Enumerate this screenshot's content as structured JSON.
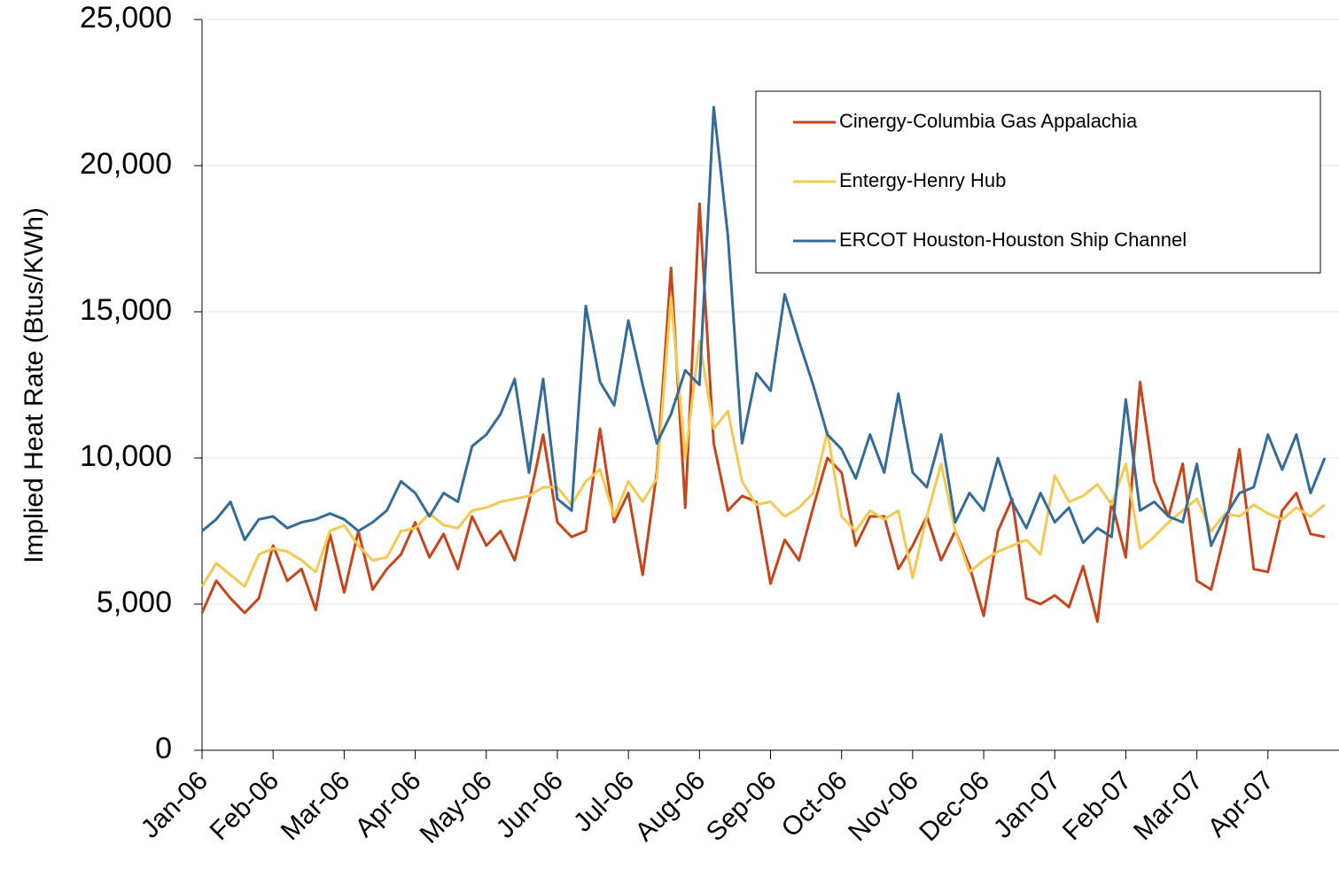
{
  "chart_data": {
    "type": "line",
    "y_label": "Implied Heat Rate (Btus/KWh)",
    "categories": [
      "Jan-06",
      null,
      null,
      null,
      null,
      "Feb-06",
      null,
      null,
      null,
      null,
      "Mar-06",
      null,
      null,
      null,
      null,
      "Apr-06",
      null,
      null,
      null,
      null,
      "May-06",
      null,
      null,
      null,
      null,
      "Jun-06",
      null,
      null,
      null,
      null,
      "Jul-06",
      null,
      null,
      null,
      null,
      "Aug-06",
      null,
      null,
      null,
      null,
      "Sep-06",
      null,
      null,
      null,
      null,
      "Oct-06",
      null,
      null,
      null,
      null,
      "Nov-06",
      null,
      null,
      null,
      null,
      "Dec-06",
      null,
      null,
      null,
      null,
      "Jan-07",
      null,
      null,
      null,
      null,
      "Feb-07",
      null,
      null,
      null,
      null,
      "Mar-07",
      null,
      null,
      null,
      null,
      "Apr-07",
      null,
      null,
      null,
      null
    ],
    "series": [
      {
        "name": "Cinergy-Columbia Gas Appalachia",
        "color": "#c8441a",
        "values": [
          4700,
          5800,
          5200,
          4700,
          5200,
          7000,
          5800,
          6200,
          4800,
          7400,
          5400,
          7500,
          5500,
          6200,
          6700,
          7800,
          6600,
          7400,
          6200,
          8000,
          7000,
          7500,
          6500,
          8500,
          10800,
          7800,
          7300,
          7500,
          11000,
          7800,
          8800,
          6000,
          9500,
          16500,
          8300,
          18700,
          10500,
          8200,
          8700,
          8500,
          5700,
          7200,
          6500,
          8300,
          10000,
          9500,
          7000,
          8000,
          8000,
          6200,
          7000,
          8000,
          6500,
          7500,
          6300,
          4600,
          7500,
          8600,
          5200,
          5000,
          5300,
          4900,
          6300,
          4400,
          8500,
          6600,
          12600,
          9200,
          8000,
          9800,
          5800,
          5500,
          7500,
          10300,
          6200,
          6100,
          8200,
          8800,
          7400,
          7300
        ]
      },
      {
        "name": "Entergy-Henry Hub",
        "color": "#f5c850",
        "values": [
          5600,
          6400,
          6000,
          5600,
          6700,
          6900,
          6800,
          6500,
          6100,
          7500,
          7700,
          7000,
          6500,
          6600,
          7500,
          7600,
          8100,
          7700,
          7600,
          8200,
          8300,
          8500,
          8600,
          8700,
          9000,
          9000,
          8400,
          9200,
          9600,
          8000,
          9200,
          8500,
          9300,
          15500,
          10000,
          14000,
          11000,
          11600,
          9200,
          8400,
          8500,
          8000,
          8300,
          8800,
          10900,
          8000,
          7500,
          8200,
          7900,
          8200,
          5900,
          8000,
          9800,
          7500,
          6100,
          6500,
          6800,
          7000,
          7200,
          6700,
          9400,
          8500,
          8700,
          9100,
          8400,
          9800,
          6900,
          7300,
          7800,
          8200,
          8600,
          7500,
          8100,
          8000,
          8400,
          8100,
          7900,
          8300,
          8000,
          8400
        ]
      },
      {
        "name": "ERCOT Houston-Houston Ship Channel",
        "color": "#336b9b",
        "values": [
          7500,
          7900,
          8500,
          7200,
          7900,
          8000,
          7600,
          7800,
          7900,
          8100,
          7900,
          7500,
          7800,
          8200,
          9200,
          8800,
          8000,
          8800,
          8500,
          10400,
          10800,
          11500,
          12700,
          9500,
          12700,
          8600,
          8200,
          15200,
          12600,
          11800,
          14700,
          12500,
          10500,
          11500,
          13000,
          12500,
          22000,
          17600,
          10500,
          12900,
          12300,
          15600,
          14000,
          12500,
          10800,
          10300,
          9300,
          10800,
          9500,
          12200,
          9500,
          9000,
          10800,
          7800,
          8800,
          8200,
          10000,
          8500,
          7600,
          8800,
          7800,
          8300,
          7100,
          7600,
          7300,
          12000,
          8200,
          8500,
          8000,
          7800,
          9800,
          7000,
          8000,
          8800,
          9000,
          10800,
          9600,
          10800,
          8800,
          10000
        ]
      }
    ],
    "ylim": [
      0,
      25000
    ],
    "yticks": [
      0,
      {
        "value": 5000,
        "label": "5,000"
      },
      {
        "value": 10000,
        "label": "10,000"
      },
      {
        "value": 15000,
        "label": "15,000"
      },
      {
        "value": 20000,
        "label": "20,000"
      },
      {
        "value": 25000,
        "label": "25,000"
      }
    ],
    "grid": true,
    "legend": "upper-right"
  }
}
